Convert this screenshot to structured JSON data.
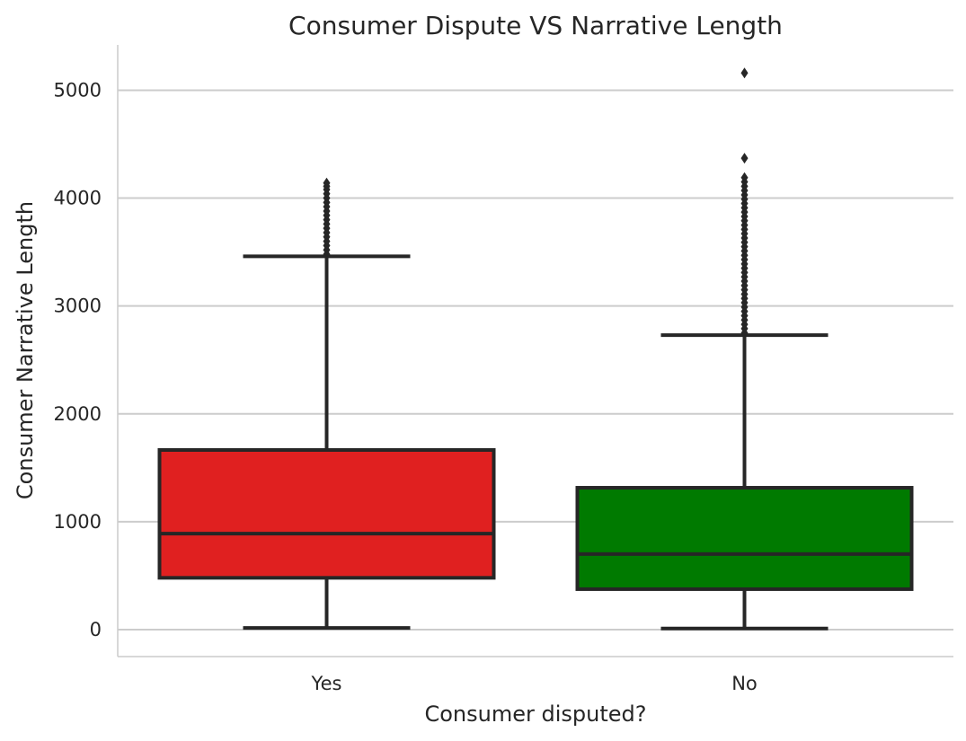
{
  "chart_data": {
    "type": "box",
    "title": "Consumer Dispute VS Narrative Length",
    "xlabel": "Consumer disputed?",
    "ylabel": "Consumer Narrative Length",
    "categories": [
      "Yes",
      "No"
    ],
    "ylim": [
      -250,
      5420
    ],
    "yticks": [
      0,
      1000,
      2000,
      3000,
      4000,
      5000
    ],
    "grid": "horizontal",
    "boxes": [
      {
        "category": "Yes",
        "color": "#e02020",
        "whisker_low": 15,
        "q1": 480,
        "median": 890,
        "q3": 1665,
        "whisker_high": 3460,
        "outliers": [
          3480,
          3520,
          3560,
          3600,
          3640,
          3680,
          3720,
          3760,
          3800,
          3840,
          3880,
          3920,
          3960,
          4000,
          4040,
          4080,
          4110,
          4140
        ]
      },
      {
        "category": "No",
        "color": "#007a00",
        "whisker_low": 10,
        "q1": 375,
        "median": 700,
        "q3": 1315,
        "whisker_high": 2730,
        "outliers": [
          2750,
          2790,
          2830,
          2870,
          2910,
          2950,
          2990,
          3030,
          3070,
          3110,
          3150,
          3190,
          3230,
          3270,
          3310,
          3350,
          3390,
          3430,
          3470,
          3510,
          3550,
          3590,
          3630,
          3670,
          3710,
          3750,
          3790,
          3830,
          3870,
          3910,
          3950,
          3990,
          4030,
          4070,
          4110,
          4150,
          4190,
          4370,
          5160
        ]
      }
    ]
  }
}
